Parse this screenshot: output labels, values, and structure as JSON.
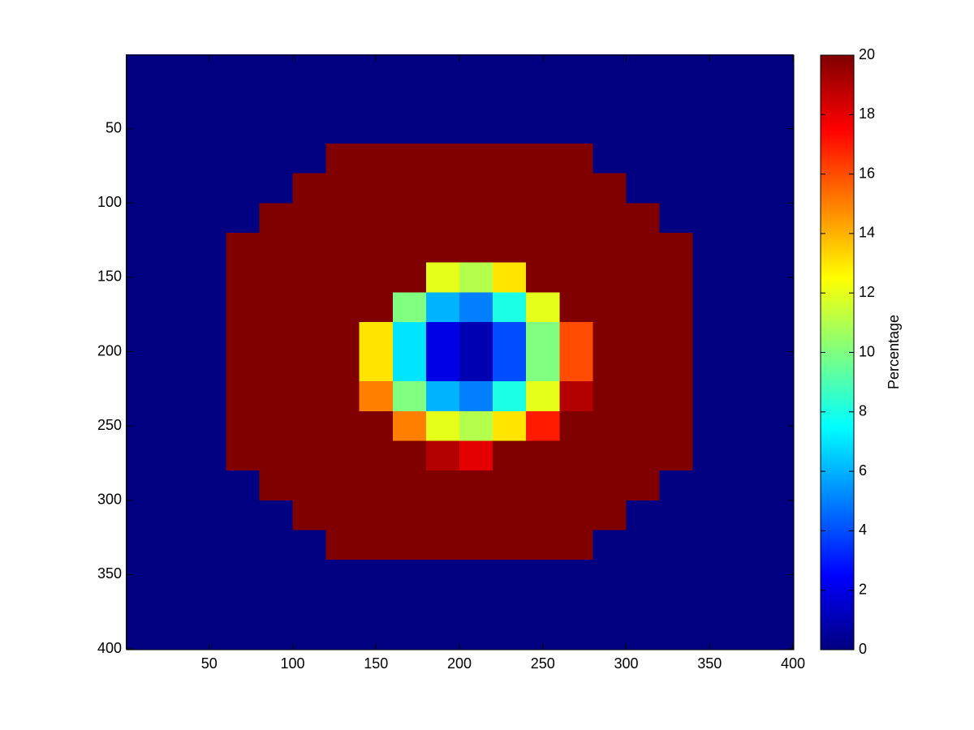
{
  "chart_data": {
    "type": "heatmap",
    "colormap": "jet",
    "x": [
      10,
      30,
      50,
      70,
      90,
      110,
      130,
      150,
      170,
      190,
      210,
      230,
      250,
      270,
      290,
      310,
      330,
      350,
      370,
      390
    ],
    "y": [
      10,
      30,
      50,
      70,
      90,
      110,
      130,
      150,
      170,
      190,
      210,
      230,
      250,
      270,
      290,
      310,
      330,
      350,
      370,
      390
    ],
    "z": [
      [
        0,
        0,
        0,
        0,
        0,
        0,
        0,
        0,
        0,
        0,
        0,
        0,
        0,
        0,
        0,
        0,
        0,
        0,
        0,
        0
      ],
      [
        0,
        0,
        0,
        0,
        0,
        0,
        0,
        0,
        0,
        0,
        0,
        0,
        0,
        0,
        0,
        0,
        0,
        0,
        0,
        0
      ],
      [
        0,
        0,
        0,
        0,
        0,
        0,
        0,
        0,
        0,
        0,
        0,
        0,
        0,
        0,
        0,
        0,
        0,
        0,
        0,
        0
      ],
      [
        0,
        0,
        0,
        0,
        0,
        0,
        20,
        20,
        20,
        20,
        20,
        20,
        20,
        20,
        0,
        0,
        0,
        0,
        0,
        0
      ],
      [
        0,
        0,
        0,
        0,
        0,
        20,
        20,
        20,
        20,
        20,
        20,
        20,
        20,
        20,
        20,
        0,
        0,
        0,
        0,
        0
      ],
      [
        0,
        0,
        0,
        0,
        20,
        20,
        20,
        20,
        20,
        20,
        20,
        20,
        20,
        20,
        20,
        20,
        0,
        0,
        0,
        0
      ],
      [
        0,
        0,
        0,
        20,
        20,
        20,
        20,
        20,
        20,
        20,
        20,
        20,
        20,
        20,
        20,
        20,
        20,
        0,
        0,
        0
      ],
      [
        0,
        0,
        0,
        20,
        20,
        20,
        20,
        20,
        20,
        12,
        11,
        13,
        20,
        20,
        20,
        20,
        20,
        0,
        0,
        0
      ],
      [
        0,
        0,
        0,
        20,
        20,
        20,
        20,
        20,
        10,
        6,
        5,
        8,
        12,
        20,
        20,
        20,
        20,
        0,
        0,
        0
      ],
      [
        0,
        0,
        0,
        20,
        20,
        20,
        20,
        13,
        7,
        2,
        1,
        4,
        10,
        16,
        20,
        20,
        20,
        0,
        0,
        0
      ],
      [
        0,
        0,
        0,
        20,
        20,
        20,
        20,
        13,
        7,
        2,
        1,
        4,
        10,
        16,
        20,
        20,
        20,
        0,
        0,
        0
      ],
      [
        0,
        0,
        0,
        20,
        20,
        20,
        20,
        15,
        10,
        6,
        5,
        8,
        12,
        19,
        20,
        20,
        20,
        0,
        0,
        0
      ],
      [
        0,
        0,
        0,
        20,
        20,
        20,
        20,
        20,
        15,
        12,
        11,
        13,
        17,
        20,
        20,
        20,
        20,
        0,
        0,
        0
      ],
      [
        0,
        0,
        0,
        20,
        20,
        20,
        20,
        20,
        20,
        19,
        18,
        20,
        20,
        20,
        20,
        20,
        20,
        0,
        0,
        0
      ],
      [
        0,
        0,
        0,
        0,
        20,
        20,
        20,
        20,
        20,
        20,
        20,
        20,
        20,
        20,
        20,
        20,
        0,
        0,
        0,
        0
      ],
      [
        0,
        0,
        0,
        0,
        0,
        20,
        20,
        20,
        20,
        20,
        20,
        20,
        20,
        20,
        20,
        0,
        0,
        0,
        0,
        0
      ],
      [
        0,
        0,
        0,
        0,
        0,
        0,
        20,
        20,
        20,
        20,
        20,
        20,
        20,
        20,
        0,
        0,
        0,
        0,
        0,
        0
      ],
      [
        0,
        0,
        0,
        0,
        0,
        0,
        0,
        0,
        0,
        0,
        0,
        0,
        0,
        0,
        0,
        0,
        0,
        0,
        0,
        0
      ],
      [
        0,
        0,
        0,
        0,
        0,
        0,
        0,
        0,
        0,
        0,
        0,
        0,
        0,
        0,
        0,
        0,
        0,
        0,
        0,
        0
      ],
      [
        0,
        0,
        0,
        0,
        0,
        0,
        0,
        0,
        0,
        0,
        0,
        0,
        0,
        0,
        0,
        0,
        0,
        0,
        0,
        0
      ]
    ],
    "xlim": [
      0.5,
      400.5
    ],
    "ylim": [
      0.5,
      400.5
    ],
    "y_reversed": true,
    "xticks": [
      50,
      100,
      150,
      200,
      250,
      300,
      350,
      400
    ],
    "yticks": [
      50,
      100,
      150,
      200,
      250,
      300,
      350,
      400
    ],
    "clim": [
      0,
      20
    ],
    "cticks": [
      0,
      2,
      4,
      6,
      8,
      10,
      12,
      14,
      16,
      18,
      20
    ],
    "colorbar_label": "Percentage"
  }
}
